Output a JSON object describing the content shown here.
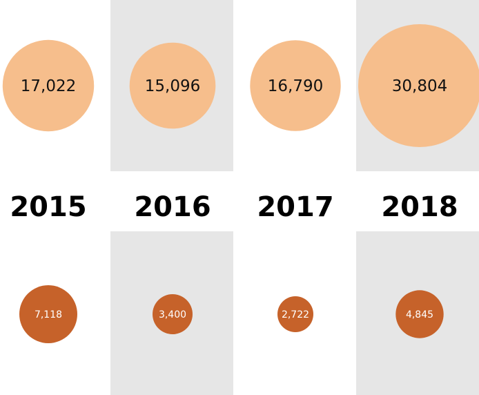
{
  "chart_data": {
    "type": "bubble",
    "categories": [
      "2015",
      "2016",
      "2017",
      "2018"
    ],
    "series": [
      {
        "values": [
          17022,
          15096,
          16790,
          30804
        ],
        "labels": [
          "17,022",
          "15,096",
          "16,790",
          "30,804"
        ]
      },
      {
        "values": [
          7118,
          3400,
          2722,
          4845
        ],
        "labels": [
          "7,118",
          "3,400",
          "2,722",
          "4,845"
        ]
      }
    ],
    "colors": {
      "top_bubble": "#F6BE8C",
      "bottom_bubble": "#C6622A",
      "alt_column_shade": "#E6E6E6"
    },
    "alternate_shading": [
      false,
      true,
      false,
      true
    ]
  }
}
